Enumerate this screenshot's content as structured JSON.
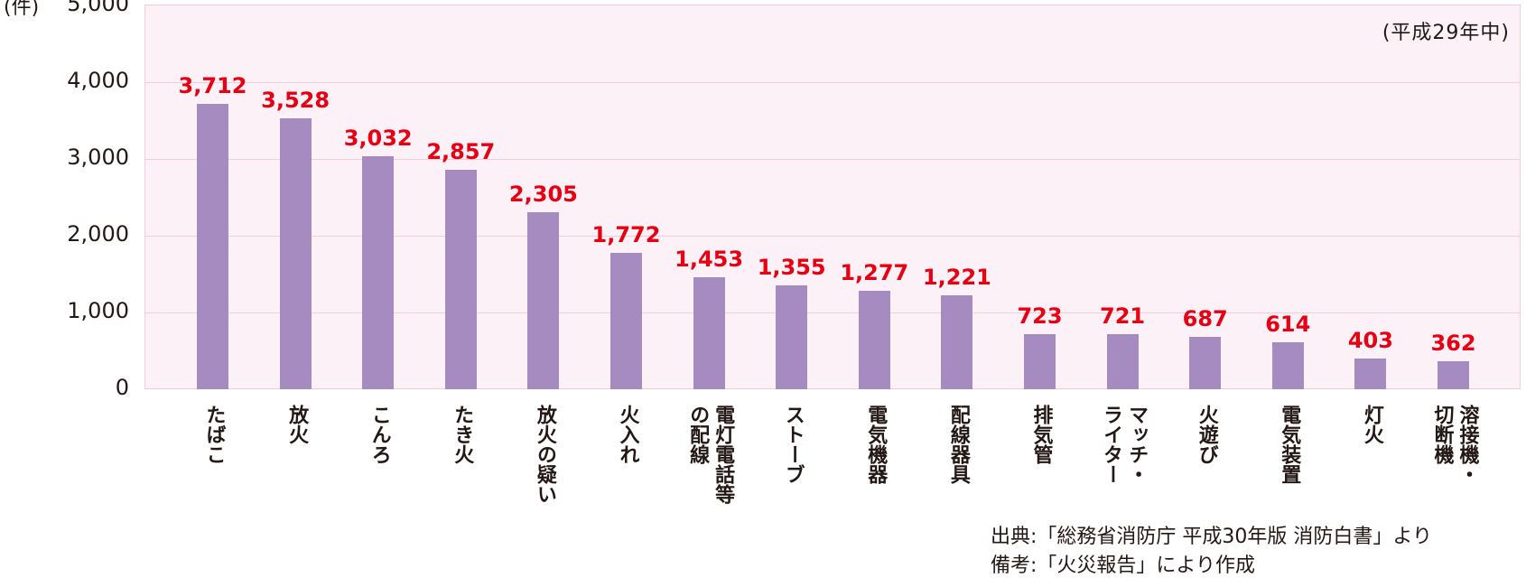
{
  "chart_data": {
    "type": "bar",
    "title": "",
    "xlabel": "",
    "ylabel": "(件)",
    "ylim": [
      0,
      5000
    ],
    "yticks": [
      "0",
      "1,000",
      "2,000",
      "3,000",
      "4,000",
      "5,000"
    ],
    "grid": true,
    "annotation": "(平成29年中)",
    "categories": [
      "たばこ",
      "放火",
      "こんろ",
      "たき火",
      "放火の疑い",
      "火入れ",
      "電灯電話等の配線",
      "ストーブ",
      "電気機器",
      "配線器具",
      "排気管",
      "マッチ・ライター",
      "火遊び",
      "電気装置",
      "灯火",
      "溶接機・切断機"
    ],
    "category_lines": [
      [
        "たばこ"
      ],
      [
        "放火"
      ],
      [
        "こんろ"
      ],
      [
        "たき火"
      ],
      [
        "放火の疑い"
      ],
      [
        "火入れ"
      ],
      [
        "電灯電話等",
        "の配線"
      ],
      [
        "ストーブ"
      ],
      [
        "電気機器"
      ],
      [
        "配線器具"
      ],
      [
        "排気管"
      ],
      [
        "マッチ・",
        "ライター"
      ],
      [
        "火遊び"
      ],
      [
        "電気装置"
      ],
      [
        "灯火"
      ],
      [
        "溶接機・",
        "切断機"
      ]
    ],
    "values": [
      3712,
      3528,
      3032,
      2857,
      2305,
      1772,
      1453,
      1355,
      1277,
      1221,
      723,
      721,
      687,
      614,
      403,
      362
    ],
    "value_labels": [
      "3,712",
      "3,528",
      "3,032",
      "2,857",
      "2,305",
      "1,772",
      "1,453",
      "1,355",
      "1,277",
      "1,221",
      "723",
      "721",
      "687",
      "614",
      "403",
      "362"
    ],
    "colors": {
      "bar": "#a68bc1",
      "value_label": "#e60012",
      "plot_bg": "#fdf1f8",
      "grid": "#f5cdd5"
    }
  },
  "axis": {
    "unit": "(件)"
  },
  "annotation": {
    "period": "(平成29年中)"
  },
  "footer": {
    "source": "出典:「総務省消防庁 平成30年版 消防白書」より",
    "note": "備考:「火災報告」により作成"
  }
}
